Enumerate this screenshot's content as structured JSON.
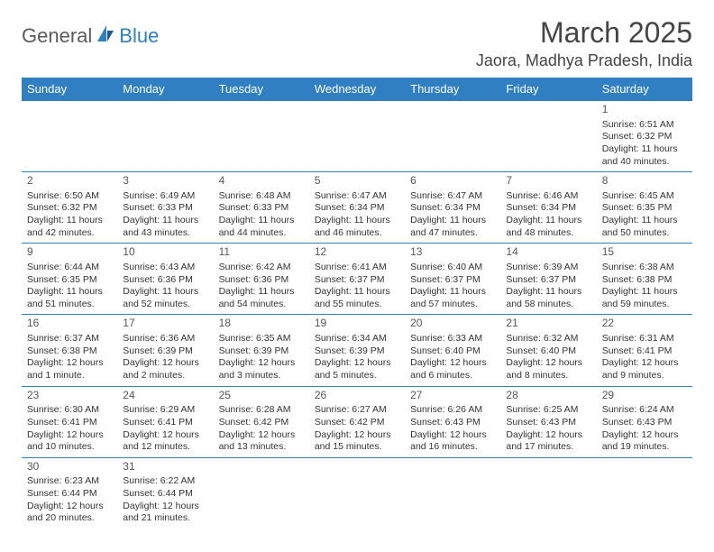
{
  "logo": {
    "text1": "General",
    "text2": "Blue"
  },
  "title": "March 2025",
  "location": "Jaora, Madhya Pradesh, India",
  "colors": {
    "header_bg": "#2f7fc2",
    "header_fg": "#ffffff",
    "border": "#2f7fc2",
    "text": "#333333",
    "title": "#444444"
  },
  "weekdays": [
    "Sunday",
    "Monday",
    "Tuesday",
    "Wednesday",
    "Thursday",
    "Friday",
    "Saturday"
  ],
  "weeks": [
    [
      null,
      null,
      null,
      null,
      null,
      null,
      {
        "n": "1",
        "sr": "Sunrise: 6:51 AM",
        "ss": "Sunset: 6:32 PM",
        "d1": "Daylight: 11 hours",
        "d2": "and 40 minutes."
      }
    ],
    [
      {
        "n": "2",
        "sr": "Sunrise: 6:50 AM",
        "ss": "Sunset: 6:32 PM",
        "d1": "Daylight: 11 hours",
        "d2": "and 42 minutes."
      },
      {
        "n": "3",
        "sr": "Sunrise: 6:49 AM",
        "ss": "Sunset: 6:33 PM",
        "d1": "Daylight: 11 hours",
        "d2": "and 43 minutes."
      },
      {
        "n": "4",
        "sr": "Sunrise: 6:48 AM",
        "ss": "Sunset: 6:33 PM",
        "d1": "Daylight: 11 hours",
        "d2": "and 44 minutes."
      },
      {
        "n": "5",
        "sr": "Sunrise: 6:47 AM",
        "ss": "Sunset: 6:34 PM",
        "d1": "Daylight: 11 hours",
        "d2": "and 46 minutes."
      },
      {
        "n": "6",
        "sr": "Sunrise: 6:47 AM",
        "ss": "Sunset: 6:34 PM",
        "d1": "Daylight: 11 hours",
        "d2": "and 47 minutes."
      },
      {
        "n": "7",
        "sr": "Sunrise: 6:46 AM",
        "ss": "Sunset: 6:34 PM",
        "d1": "Daylight: 11 hours",
        "d2": "and 48 minutes."
      },
      {
        "n": "8",
        "sr": "Sunrise: 6:45 AM",
        "ss": "Sunset: 6:35 PM",
        "d1": "Daylight: 11 hours",
        "d2": "and 50 minutes."
      }
    ],
    [
      {
        "n": "9",
        "sr": "Sunrise: 6:44 AM",
        "ss": "Sunset: 6:35 PM",
        "d1": "Daylight: 11 hours",
        "d2": "and 51 minutes."
      },
      {
        "n": "10",
        "sr": "Sunrise: 6:43 AM",
        "ss": "Sunset: 6:36 PM",
        "d1": "Daylight: 11 hours",
        "d2": "and 52 minutes."
      },
      {
        "n": "11",
        "sr": "Sunrise: 6:42 AM",
        "ss": "Sunset: 6:36 PM",
        "d1": "Daylight: 11 hours",
        "d2": "and 54 minutes."
      },
      {
        "n": "12",
        "sr": "Sunrise: 6:41 AM",
        "ss": "Sunset: 6:37 PM",
        "d1": "Daylight: 11 hours",
        "d2": "and 55 minutes."
      },
      {
        "n": "13",
        "sr": "Sunrise: 6:40 AM",
        "ss": "Sunset: 6:37 PM",
        "d1": "Daylight: 11 hours",
        "d2": "and 57 minutes."
      },
      {
        "n": "14",
        "sr": "Sunrise: 6:39 AM",
        "ss": "Sunset: 6:37 PM",
        "d1": "Daylight: 11 hours",
        "d2": "and 58 minutes."
      },
      {
        "n": "15",
        "sr": "Sunrise: 6:38 AM",
        "ss": "Sunset: 6:38 PM",
        "d1": "Daylight: 11 hours",
        "d2": "and 59 minutes."
      }
    ],
    [
      {
        "n": "16",
        "sr": "Sunrise: 6:37 AM",
        "ss": "Sunset: 6:38 PM",
        "d1": "Daylight: 12 hours",
        "d2": "and 1 minute."
      },
      {
        "n": "17",
        "sr": "Sunrise: 6:36 AM",
        "ss": "Sunset: 6:39 PM",
        "d1": "Daylight: 12 hours",
        "d2": "and 2 minutes."
      },
      {
        "n": "18",
        "sr": "Sunrise: 6:35 AM",
        "ss": "Sunset: 6:39 PM",
        "d1": "Daylight: 12 hours",
        "d2": "and 3 minutes."
      },
      {
        "n": "19",
        "sr": "Sunrise: 6:34 AM",
        "ss": "Sunset: 6:39 PM",
        "d1": "Daylight: 12 hours",
        "d2": "and 5 minutes."
      },
      {
        "n": "20",
        "sr": "Sunrise: 6:33 AM",
        "ss": "Sunset: 6:40 PM",
        "d1": "Daylight: 12 hours",
        "d2": "and 6 minutes."
      },
      {
        "n": "21",
        "sr": "Sunrise: 6:32 AM",
        "ss": "Sunset: 6:40 PM",
        "d1": "Daylight: 12 hours",
        "d2": "and 8 minutes."
      },
      {
        "n": "22",
        "sr": "Sunrise: 6:31 AM",
        "ss": "Sunset: 6:41 PM",
        "d1": "Daylight: 12 hours",
        "d2": "and 9 minutes."
      }
    ],
    [
      {
        "n": "23",
        "sr": "Sunrise: 6:30 AM",
        "ss": "Sunset: 6:41 PM",
        "d1": "Daylight: 12 hours",
        "d2": "and 10 minutes."
      },
      {
        "n": "24",
        "sr": "Sunrise: 6:29 AM",
        "ss": "Sunset: 6:41 PM",
        "d1": "Daylight: 12 hours",
        "d2": "and 12 minutes."
      },
      {
        "n": "25",
        "sr": "Sunrise: 6:28 AM",
        "ss": "Sunset: 6:42 PM",
        "d1": "Daylight: 12 hours",
        "d2": "and 13 minutes."
      },
      {
        "n": "26",
        "sr": "Sunrise: 6:27 AM",
        "ss": "Sunset: 6:42 PM",
        "d1": "Daylight: 12 hours",
        "d2": "and 15 minutes."
      },
      {
        "n": "27",
        "sr": "Sunrise: 6:26 AM",
        "ss": "Sunset: 6:43 PM",
        "d1": "Daylight: 12 hours",
        "d2": "and 16 minutes."
      },
      {
        "n": "28",
        "sr": "Sunrise: 6:25 AM",
        "ss": "Sunset: 6:43 PM",
        "d1": "Daylight: 12 hours",
        "d2": "and 17 minutes."
      },
      {
        "n": "29",
        "sr": "Sunrise: 6:24 AM",
        "ss": "Sunset: 6:43 PM",
        "d1": "Daylight: 12 hours",
        "d2": "and 19 minutes."
      }
    ],
    [
      {
        "n": "30",
        "sr": "Sunrise: 6:23 AM",
        "ss": "Sunset: 6:44 PM",
        "d1": "Daylight: 12 hours",
        "d2": "and 20 minutes."
      },
      {
        "n": "31",
        "sr": "Sunrise: 6:22 AM",
        "ss": "Sunset: 6:44 PM",
        "d1": "Daylight: 12 hours",
        "d2": "and 21 minutes."
      },
      null,
      null,
      null,
      null,
      null
    ]
  ]
}
